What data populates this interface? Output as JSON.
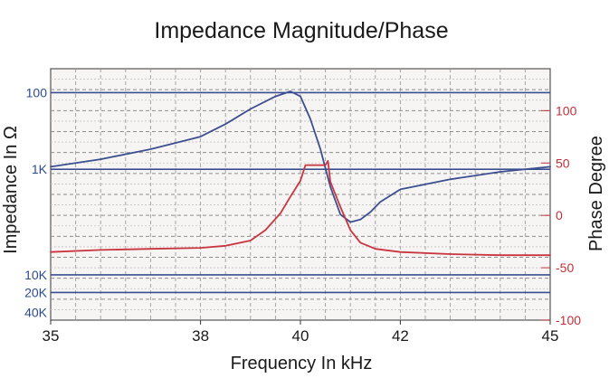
{
  "chart_data": {
    "type": "line",
    "title": "Impedance Magnitude/Phase",
    "xlabel": "Frequency In kHz",
    "ylabel_left": "Impedance In Ω",
    "ylabel_right": "Phase Degree",
    "xlim": [
      35,
      45
    ],
    "x_ticks": [
      35,
      38,
      40,
      42,
      45
    ],
    "y_left_ticks": [
      "100",
      "1K",
      "10K",
      "20K",
      "40K"
    ],
    "y_right_ticks": [
      "100",
      "50",
      "0",
      "-50",
      "-100"
    ],
    "y_right_lim": [
      -100,
      140
    ],
    "grid": true,
    "colors": {
      "impedance": "#3a4f8f",
      "phase": "#c9353f",
      "grid": "#9a9a9a",
      "accent_lines": "#3a4f8f"
    },
    "series": [
      {
        "key": "impedance",
        "axis": "left",
        "x": [
          35,
          36,
          37,
          38,
          38.5,
          39,
          39.5,
          39.8,
          40,
          40.2,
          40.4,
          40.6,
          40.8,
          41,
          41.2,
          41.4,
          41.6,
          42,
          43,
          44,
          45
        ],
        "y": [
          0.61,
          0.64,
          0.68,
          0.73,
          0.78,
          0.84,
          0.89,
          0.91,
          0.89,
          0.8,
          0.68,
          0.53,
          0.42,
          0.39,
          0.4,
          0.43,
          0.47,
          0.52,
          0.56,
          0.59,
          0.61
        ]
      },
      {
        "key": "phase",
        "axis": "right",
        "x": [
          35,
          36,
          37,
          38,
          38.5,
          39,
          39.3,
          39.6,
          39.8,
          40,
          40.1,
          40.2,
          40.3,
          40.5,
          40.55,
          40.6,
          40.8,
          41,
          41.2,
          41.5,
          42,
          43,
          44,
          45
        ],
        "y": [
          -35,
          -33,
          -32,
          -31,
          -29,
          -24,
          -14,
          2,
          18,
          33,
          48,
          48,
          48,
          48,
          52,
          32,
          8,
          -14,
          -26,
          -32,
          -35,
          -37,
          -38,
          -38
        ]
      }
    ]
  }
}
